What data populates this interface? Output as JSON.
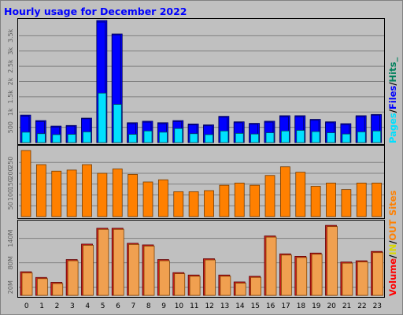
{
  "title": "Hourly usage for December 2022",
  "colors": {
    "background": "#c0c0c0",
    "title": "#0000ff",
    "pages": "#00e0ff",
    "files": "#0000ff",
    "hits": "#00805c",
    "sites": "#ff8000",
    "volume": "#ff0000",
    "in": "#d8d800",
    "out": "#ff8000"
  },
  "chart_data": [
    {
      "type": "bar",
      "panel": "pages-files-hits",
      "categories": [
        "0",
        "1",
        "2",
        "3",
        "4",
        "5",
        "6",
        "7",
        "8",
        "9",
        "10",
        "11",
        "12",
        "13",
        "14",
        "15",
        "16",
        "17",
        "18",
        "19",
        "20",
        "21",
        "22",
        "23"
      ],
      "y_ticks": [
        "500",
        "1k",
        "1.5k",
        "2k",
        "2.5k",
        "3k",
        "3.5k"
      ],
      "ylim": [
        0,
        4000
      ],
      "legend": {
        "pages": "Pages",
        "sep1": "/",
        "files": "Files",
        "sep2": "/",
        "hits": "Hits_"
      },
      "series": [
        {
          "name": "Hits",
          "values": [
            900,
            720,
            540,
            560,
            800,
            4000,
            3560,
            650,
            700,
            650,
            720,
            610,
            580,
            860,
            680,
            630,
            700,
            880,
            880,
            760,
            680,
            620,
            880,
            920
          ]
        },
        {
          "name": "Files",
          "values": [
            870,
            690,
            510,
            540,
            780,
            3950,
            3530,
            620,
            670,
            620,
            690,
            580,
            550,
            830,
            650,
            600,
            670,
            850,
            850,
            730,
            650,
            590,
            850,
            900
          ]
        },
        {
          "name": "Pages",
          "values": [
            340,
            290,
            260,
            270,
            350,
            1620,
            1250,
            270,
            380,
            340,
            460,
            290,
            260,
            380,
            300,
            280,
            320,
            380,
            400,
            360,
            320,
            280,
            350,
            380
          ]
        }
      ]
    },
    {
      "type": "bar",
      "panel": "sites",
      "categories": [
        "0",
        "1",
        "2",
        "3",
        "4",
        "5",
        "6",
        "7",
        "8",
        "9",
        "10",
        "11",
        "12",
        "13",
        "14",
        "15",
        "16",
        "17",
        "18",
        "19",
        "20",
        "21",
        "22",
        "23"
      ],
      "y_ticks": [
        "50",
        "100",
        "150",
        "200",
        "250"
      ],
      "ylim": [
        0,
        320
      ],
      "legend": {
        "sites": "Sites"
      },
      "series": [
        {
          "name": "Sites",
          "values": [
            305,
            240,
            210,
            215,
            240,
            200,
            220,
            195,
            160,
            170,
            115,
            115,
            120,
            145,
            155,
            145,
            190,
            230,
            205,
            140,
            155,
            125,
            155,
            155
          ]
        }
      ]
    },
    {
      "type": "bar",
      "panel": "volume",
      "categories": [
        "0",
        "1",
        "2",
        "3",
        "4",
        "5",
        "6",
        "7",
        "8",
        "9",
        "10",
        "11",
        "12",
        "13",
        "14",
        "15",
        "16",
        "17",
        "18",
        "19",
        "20",
        "21",
        "22",
        "23"
      ],
      "y_ticks": [
        "20M",
        "80M",
        "140M"
      ],
      "ylim": [
        0,
        180
      ],
      "legend": {
        "volume": "Volume",
        "sep1": "/",
        "in": "IN",
        "sep2": "/",
        "out": "OUT"
      },
      "series": [
        {
          "name": "Volume",
          "values": [
            58,
            44,
            32,
            88,
            126,
            165,
            165,
            128,
            124,
            88,
            56,
            50,
            90,
            50,
            33,
            47,
            146,
            102,
            96,
            104,
            172,
            82,
            85,
            108
          ]
        }
      ]
    }
  ]
}
